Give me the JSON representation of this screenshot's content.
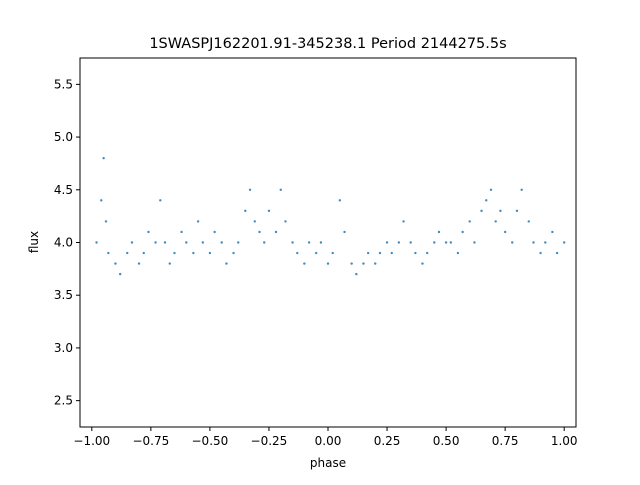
{
  "chart_data": {
    "type": "scatter",
    "title": "1SWASPJ162201.91-345238.1 Period 2144275.5s",
    "xlabel": "phase",
    "ylabel": "flux",
    "xlim": [
      -1.05,
      1.05
    ],
    "ylim": [
      2.25,
      5.75
    ],
    "xticks": [
      -1.0,
      -0.75,
      -0.5,
      -0.25,
      0.0,
      0.25,
      0.5,
      0.75,
      1.0
    ],
    "xtick_labels": [
      "−1.00",
      "−0.75",
      "−0.50",
      "−0.25",
      "0.00",
      "0.25",
      "0.50",
      "0.75",
      "1.00"
    ],
    "yticks": [
      2.5,
      3.0,
      3.5,
      4.0,
      4.5,
      5.0,
      5.5
    ],
    "ytick_labels": [
      "2.5",
      "3.0",
      "3.5",
      "4.0",
      "4.5",
      "5.0",
      "5.5"
    ],
    "grid": false,
    "marker_color": "#1f77b4",
    "series": [
      {
        "x": [
          -0.98,
          -0.96,
          -0.95,
          -0.94,
          -0.93,
          -0.9,
          -0.88,
          -0.85,
          -0.83,
          -0.8,
          -0.78,
          -0.76,
          -0.73,
          -0.71,
          -0.69,
          -0.67,
          -0.65,
          -0.62,
          -0.6,
          -0.57,
          -0.55,
          -0.53,
          -0.5,
          -0.48,
          -0.45,
          -0.43,
          -0.4,
          -0.38,
          -0.35,
          -0.33,
          -0.31,
          -0.29,
          -0.27,
          -0.25,
          -0.22,
          -0.2,
          -0.18,
          -0.15,
          -0.13,
          -0.1,
          -0.08,
          -0.05,
          -0.03,
          0.0,
          0.02,
          0.05,
          0.07,
          0.1,
          0.12,
          0.15,
          0.17,
          0.2,
          0.22,
          0.25,
          0.27,
          0.3,
          0.32,
          0.35,
          0.37,
          0.4,
          0.42,
          0.45,
          0.47,
          0.5,
          0.52,
          0.55,
          0.57,
          0.6,
          0.62,
          0.65,
          0.67,
          0.69,
          0.71,
          0.73,
          0.75,
          0.78,
          0.8,
          0.82,
          0.85,
          0.87,
          0.9,
          0.92,
          0.95,
          0.97,
          1.0
        ],
        "y": [
          4.0,
          4.4,
          4.8,
          4.2,
          3.9,
          3.8,
          3.7,
          3.9,
          4.0,
          3.8,
          3.9,
          4.1,
          4.0,
          4.4,
          4.0,
          3.8,
          3.9,
          4.1,
          4.0,
          3.9,
          4.2,
          4.0,
          3.9,
          4.1,
          4.0,
          3.8,
          3.9,
          4.0,
          4.3,
          4.5,
          4.2,
          4.1,
          4.0,
          4.3,
          4.1,
          4.5,
          4.2,
          4.0,
          3.9,
          3.8,
          4.0,
          3.9,
          4.0,
          3.8,
          3.9,
          4.4,
          4.1,
          3.8,
          3.7,
          3.8,
          3.9,
          3.8,
          3.9,
          4.0,
          3.9,
          4.0,
          4.2,
          4.0,
          3.9,
          3.8,
          3.9,
          4.0,
          4.1,
          4.0,
          4.0,
          3.9,
          4.1,
          4.2,
          4.0,
          4.3,
          4.4,
          4.5,
          4.2,
          4.3,
          4.1,
          4.0,
          4.3,
          4.5,
          4.2,
          4.0,
          3.9,
          4.0,
          4.1,
          3.9,
          4.0
        ]
      }
    ]
  }
}
